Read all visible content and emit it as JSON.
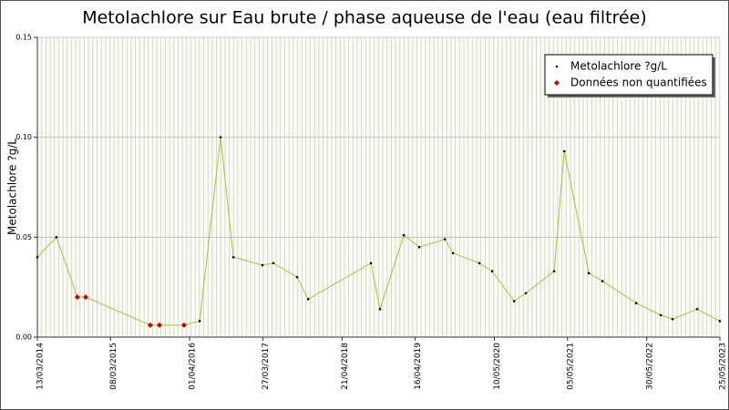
{
  "chart_data": {
    "type": "line",
    "title": "Metolachlore sur Eau brute / phase aqueuse de l'eau (eau filtrée)",
    "y_label": "Metolachlore ?g/L",
    "x": [
      "13/03/2014",
      "15/06/2014",
      "26/09/2014",
      "06/11/2014",
      "20/09/2015",
      "04/11/2015",
      "04/03/2016",
      "20/05/2016",
      "31/08/2016",
      "02/11/2016",
      "25/03/2017",
      "18/05/2017",
      "12/09/2017",
      "05/11/2017",
      "10/09/2018",
      "25/10/2018",
      "19/02/2019",
      "06/05/2019",
      "09/09/2019",
      "19/10/2019",
      "26/02/2020",
      "29/04/2020",
      "15/08/2020",
      "12/10/2020",
      "28/02/2021",
      "19/04/2021",
      "18/08/2021",
      "24/10/2021",
      "08/04/2022",
      "07/08/2022",
      "04/10/2022",
      "02/02/2023",
      "25/05/2023"
    ],
    "series": [
      {
        "name": "Metolachlore ?g/L",
        "color": "#000000",
        "line_color": "#99cc33",
        "values": [
          0.04,
          0.05,
          0.02,
          0.02,
          0.006,
          0.006,
          0.006,
          0.008,
          0.1,
          0.04,
          0.036,
          0.037,
          0.03,
          0.019,
          0.037,
          0.014,
          0.051,
          0.045,
          0.049,
          0.042,
          0.037,
          0.033,
          0.018,
          0.022,
          0.033,
          0.093,
          0.032,
          0.028,
          0.017,
          0.011,
          0.009,
          0.014,
          0.008
        ]
      },
      {
        "name": "Données non quantifiées",
        "color": "#cc0000",
        "values": [
          null,
          null,
          0.02,
          0.02,
          0.006,
          0.006,
          0.006,
          null,
          null,
          null,
          null,
          null,
          null,
          null,
          null,
          null,
          null,
          null,
          null,
          null,
          null,
          null,
          null,
          null,
          null,
          null,
          null,
          null,
          null,
          null,
          null,
          null,
          null
        ]
      }
    ],
    "xlim": [
      "13/03/2014",
      "25/05/2023"
    ],
    "xticks": [
      "13/03/2014",
      "08/03/2015",
      "01/04/2016",
      "27/03/2017",
      "21/04/2018",
      "16/04/2019",
      "10/05/2020",
      "05/05/2021",
      "30/05/2022",
      "25/05/2023"
    ],
    "ylim": [
      0,
      0.15
    ],
    "yticks": [
      {
        "value": 0,
        "label": "0.00"
      },
      {
        "value": 0.05,
        "label": "0.05"
      },
      {
        "value": 0.1,
        "label": "0.10"
      },
      {
        "value": 0.15,
        "label": "0.15"
      }
    ],
    "grid": true,
    "legend": "top-right"
  }
}
